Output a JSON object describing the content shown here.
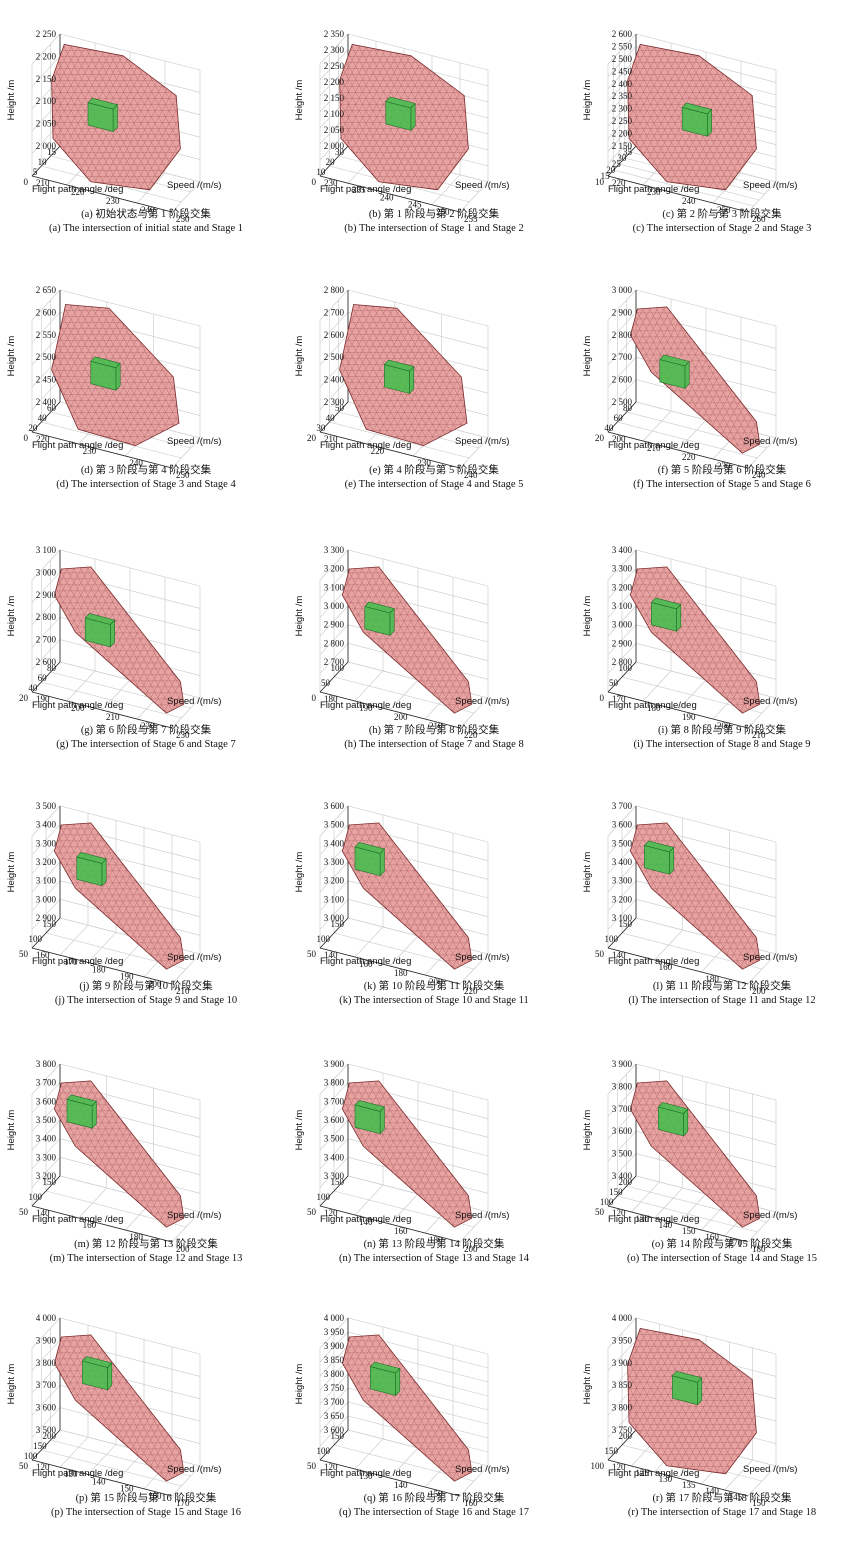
{
  "figure": {
    "panels": [
      {
        "id": "a",
        "caption_cn": "(a) 初始状态与第 1 阶段交集",
        "caption_en": "(a) The intersection of initial state and Stage 1",
        "chart_data": {
          "type": "3d-surface",
          "zlabel": "Height /m",
          "ylabel": "Flight path angle /deg",
          "xlabel": "Speed /(m/s)",
          "z_ticks": [
            "2 000",
            "2 050",
            "2 100",
            "2 150",
            "2 200",
            "2 250"
          ],
          "y_ticks": [
            "0",
            "5",
            "10",
            "15"
          ],
          "x_ticks": [
            "210",
            "220",
            "230",
            "240",
            "250"
          ],
          "shape": "bulky",
          "box": [
            0.35,
            0.25,
            0.5
          ]
        }
      },
      {
        "id": "b",
        "caption_cn": "(b) 第 1 阶段与第 2 阶段交集",
        "caption_en": "(b) The intersection of Stage 1 and Stage 2",
        "chart_data": {
          "type": "3d-surface",
          "zlabel": "Height /m",
          "ylabel": "Flight path angle /deg",
          "xlabel": "Speed /(m/s)",
          "z_ticks": [
            "2 000",
            "2 050",
            "2 100",
            "2 150",
            "2 200",
            "2 250",
            "2 300",
            "2 350"
          ],
          "y_ticks": [
            "0",
            "10",
            "20",
            "30"
          ],
          "x_ticks": [
            "230",
            "235",
            "240",
            "245",
            "250",
            "255"
          ],
          "shape": "bulky",
          "box": [
            0.4,
            0.35,
            0.5
          ]
        }
      },
      {
        "id": "c",
        "caption_cn": "(c) 第 2 阶与第 3 阶段交集",
        "caption_en": "(c) The intersection of Stage 2 and Stage 3",
        "chart_data": {
          "type": "3d-surface",
          "zlabel": "Height /m",
          "ylabel": "Flight path angle /deg",
          "xlabel": "Speed /(m/s)",
          "z_ticks": [
            "2 150",
            "2 200",
            "2 250",
            "2 300",
            "2 350",
            "2 400",
            "2 450",
            "2 500",
            "2 550",
            "2 600"
          ],
          "y_ticks": [
            "10",
            "15",
            "20",
            "25",
            "30",
            "35"
          ],
          "x_ticks": [
            "220",
            "230",
            "240",
            "250",
            "260"
          ],
          "shape": "bulky",
          "box": [
            0.45,
            0.4,
            0.45
          ]
        }
      },
      {
        "id": "d",
        "caption_cn": "(d) 第 3 阶段与第 4 阶段交集",
        "caption_en": "(d) The intersection of Stage 3 and Stage 4",
        "chart_data": {
          "type": "3d-surface",
          "zlabel": "Height /m",
          "ylabel": "Flight path angle /deg",
          "xlabel": "Speed /(m/s)",
          "z_ticks": [
            "2 400",
            "2 450",
            "2 500",
            "2 550",
            "2 600",
            "2 650"
          ],
          "y_ticks": [
            "0",
            "20",
            "40",
            "60"
          ],
          "x_ticks": [
            "220",
            "230",
            "240",
            "250"
          ],
          "shape": "mid",
          "box": [
            0.35,
            0.35,
            0.45
          ]
        }
      },
      {
        "id": "e",
        "caption_cn": "(e) 第 4 阶段与第 5 阶段交集",
        "caption_en": "(e) The intersection of Stage 4 and Stage 5",
        "chart_data": {
          "type": "3d-surface",
          "zlabel": "Height /m",
          "ylabel": "Flight path angle /deg",
          "xlabel": "Speed /(m/s)",
          "z_ticks": [
            "2 300",
            "2 400",
            "2 500",
            "2 600",
            "2 700",
            "2 800"
          ],
          "y_ticks": [
            "20",
            "30",
            "40",
            "50"
          ],
          "x_ticks": [
            "210",
            "220",
            "230",
            "240"
          ],
          "shape": "mid",
          "box": [
            0.4,
            0.3,
            0.45
          ]
        }
      },
      {
        "id": "f",
        "caption_cn": "(f) 第 5 阶段与第 6 阶段交集",
        "caption_en": "(f) The intersection of Stage 5 and Stage 6",
        "chart_data": {
          "type": "3d-surface",
          "zlabel": "Height /m",
          "ylabel": "Flight path angle /deg",
          "xlabel": "Speed /(m/s)",
          "z_ticks": [
            "2 500",
            "2 600",
            "2 700",
            "2 800",
            "2 900",
            "3 000"
          ],
          "y_ticks": [
            "20",
            "40",
            "60",
            "80"
          ],
          "x_ticks": [
            "200",
            "210",
            "220",
            "230",
            "240"
          ],
          "shape": "long",
          "box": [
            0.3,
            0.35,
            0.45
          ]
        }
      },
      {
        "id": "g",
        "caption_cn": "(g) 第 6 阶段与第 7 阶段交集",
        "caption_en": "(g) The intersection of Stage 6 and Stage 7",
        "chart_data": {
          "type": "3d-surface",
          "zlabel": "Height /m",
          "ylabel": "Flight path angle /deg",
          "xlabel": "Speed /(m/s)",
          "z_ticks": [
            "2 600",
            "2 700",
            "2 800",
            "2 900",
            "3 000",
            "3 100"
          ],
          "y_ticks": [
            "20",
            "40",
            "60",
            "80"
          ],
          "x_ticks": [
            "190",
            "200",
            "210",
            "220",
            "230"
          ],
          "shape": "long",
          "box": [
            0.3,
            0.4,
            0.45
          ]
        }
      },
      {
        "id": "h",
        "caption_cn": "(h) 第 7 阶段与第 8 阶段交集",
        "caption_en": "(h) The intersection of Stage 7 and Stage 8",
        "chart_data": {
          "type": "3d-surface",
          "zlabel": "Height /m",
          "ylabel": "Flight path angle /deg",
          "xlabel": "Speed /(m/s)",
          "z_ticks": [
            "2 700",
            "2 800",
            "2 900",
            "3 000",
            "3 100",
            "3 200",
            "3 300"
          ],
          "y_ticks": [
            "0",
            "50",
            "100"
          ],
          "x_ticks": [
            "180",
            "190",
            "200",
            "210",
            "220"
          ],
          "shape": "long",
          "box": [
            0.25,
            0.35,
            0.55
          ]
        }
      },
      {
        "id": "i",
        "caption_cn": "(i) 第 8 阶段与第 9 阶段交集",
        "caption_en": "(i) The intersection of Stage 8 and Stage 9",
        "chart_data": {
          "type": "3d-surface",
          "zlabel": "Height /m",
          "ylabel": "Flight path angle/deg",
          "xlabel": "Speed /(m/s)",
          "z_ticks": [
            "2 800",
            "2 900",
            "3 000",
            "3 100",
            "3 200",
            "3 300",
            "3 400"
          ],
          "y_ticks": [
            "0",
            "50",
            "100"
          ],
          "x_ticks": [
            "170",
            "180",
            "190",
            "200",
            "210"
          ],
          "shape": "long",
          "box": [
            0.25,
            0.3,
            0.6
          ]
        }
      },
      {
        "id": "j",
        "caption_cn": "(j) 第 9 阶段与第 10 阶段交集",
        "caption_en": "(j) The intersection of Stage 9 and Stage 10",
        "chart_data": {
          "type": "3d-surface",
          "zlabel": "Height /m",
          "ylabel": "Flight path angle /deg",
          "xlabel": "Speed /(m/s)",
          "z_ticks": [
            "2 900",
            "3 000",
            "3 100",
            "3 200",
            "3 300",
            "3 400",
            "3 500"
          ],
          "y_ticks": [
            "50",
            "100",
            "150"
          ],
          "x_ticks": [
            "160",
            "170",
            "180",
            "190",
            "200",
            "210"
          ],
          "shape": "long",
          "box": [
            0.25,
            0.35,
            0.6
          ]
        }
      },
      {
        "id": "k",
        "caption_cn": "(k) 第 10 阶段与第 11 阶段交集",
        "caption_en": "(k) The intersection of Stage 10 and Stage 11",
        "chart_data": {
          "type": "3d-surface",
          "zlabel": "Height /m",
          "ylabel": "Flight path angle /deg",
          "xlabel": "Speed /(m/s)",
          "z_ticks": [
            "3 000",
            "3 100",
            "3 200",
            "3 300",
            "3 400",
            "3 500",
            "3 600"
          ],
          "y_ticks": [
            "50",
            "100",
            "150"
          ],
          "x_ticks": [
            "140",
            "160",
            "180",
            "200",
            "220"
          ],
          "shape": "long",
          "box": [
            0.2,
            0.25,
            0.7
          ]
        }
      },
      {
        "id": "l",
        "caption_cn": "(l) 第 11 阶段与第 12 阶段交集",
        "caption_en": "(l) The intersection of Stage 11 and Stage 12",
        "chart_data": {
          "type": "3d-surface",
          "zlabel": "Height /m",
          "ylabel": "Flight path angle /deg",
          "xlabel": "Speed /(m/s)",
          "z_ticks": [
            "3 100",
            "3 200",
            "3 300",
            "3 400",
            "3 500",
            "3 600",
            "3 700"
          ],
          "y_ticks": [
            "50",
            "100",
            "150"
          ],
          "x_ticks": [
            "140",
            "160",
            "180",
            "200"
          ],
          "shape": "long",
          "box": [
            0.2,
            0.3,
            0.7
          ]
        }
      },
      {
        "id": "m",
        "caption_cn": "(m) 第 12 阶段与第 13 阶段交集",
        "caption_en": "(m) The intersection of Stage 12 and Stage 13",
        "chart_data": {
          "type": "3d-surface",
          "zlabel": "Height /m",
          "ylabel": "Flight path angle /deg",
          "xlabel": "Speed /(m/s)",
          "z_ticks": [
            "3 200",
            "3 300",
            "3 400",
            "3 500",
            "3 600",
            "3 700",
            "3 800"
          ],
          "y_ticks": [
            "50",
            "100",
            "150"
          ],
          "x_ticks": [
            "140",
            "160",
            "180",
            "200"
          ],
          "shape": "long",
          "box": [
            0.2,
            0.25,
            0.75
          ]
        }
      },
      {
        "id": "n",
        "caption_cn": "(n) 第 13 阶段与第 14 阶段交集",
        "caption_en": "(n) The intersection of Stage 13 and Stage 14",
        "chart_data": {
          "type": "3d-surface",
          "zlabel": "Height /m",
          "ylabel": "Flight path angle /deg",
          "xlabel": "Speed /(m/s)",
          "z_ticks": [
            "3 300",
            "3 400",
            "3 500",
            "3 600",
            "3 700",
            "3 800",
            "3 900"
          ],
          "y_ticks": [
            "50",
            "100",
            "150"
          ],
          "x_ticks": [
            "120",
            "140",
            "160",
            "180",
            "200"
          ],
          "shape": "long",
          "box": [
            0.2,
            0.25,
            0.7
          ]
        }
      },
      {
        "id": "o",
        "caption_cn": "(o) 第 14 阶段与第 15 阶段交集",
        "caption_en": "(o) The intersection of Stage 14 and Stage 15",
        "chart_data": {
          "type": "3d-surface",
          "zlabel": "Height /m",
          "ylabel": "Flight path angle /deg",
          "xlabel": "Speed /(m/s)",
          "z_ticks": [
            "3 400",
            "3 500",
            "3 600",
            "3 700",
            "3 800",
            "3 900"
          ],
          "y_ticks": [
            "50",
            "100",
            "150",
            "200"
          ],
          "x_ticks": [
            "120",
            "130",
            "140",
            "150",
            "160",
            "170",
            "180"
          ],
          "shape": "long",
          "box": [
            0.3,
            0.3,
            0.7
          ]
        }
      },
      {
        "id": "p",
        "caption_cn": "(p) 第 15 阶段与第 16 阶段交集",
        "caption_en": "(p) The intersection of Stage 15 and Stage 16",
        "chart_data": {
          "type": "3d-surface",
          "zlabel": "Height /m",
          "ylabel": "Flight path angle /deg",
          "xlabel": "Speed /(m/s)",
          "z_ticks": [
            "3 500",
            "3 600",
            "3 700",
            "3 800",
            "3 900",
            "4 000"
          ],
          "y_ticks": [
            "50",
            "100",
            "150",
            "200"
          ],
          "x_ticks": [
            "120",
            "130",
            "140",
            "150",
            "160",
            "170"
          ],
          "shape": "long",
          "box": [
            0.3,
            0.3,
            0.7
          ]
        }
      },
      {
        "id": "q",
        "caption_cn": "(q) 第 16 阶段与第 17 阶段交集",
        "caption_en": "(q) The intersection of Stage 16 and Stage 17",
        "chart_data": {
          "type": "3d-surface",
          "zlabel": "Height /m",
          "ylabel": "Flight path angle /deg",
          "xlabel": "Speed /(m/s)",
          "z_ticks": [
            "3 600",
            "3 650",
            "3 700",
            "3 750",
            "3 800",
            "3 850",
            "3 900",
            "3 950",
            "4 000"
          ],
          "y_ticks": [
            "50",
            "100",
            "150"
          ],
          "x_ticks": [
            "120",
            "130",
            "140",
            "150",
            "160"
          ],
          "shape": "long",
          "box": [
            0.3,
            0.3,
            0.65
          ]
        }
      },
      {
        "id": "r",
        "caption_cn": "(r) 第 17 阶段与第 18 阶段交集",
        "caption_en": "(r) The intersection of Stage 17 and Stage 18",
        "chart_data": {
          "type": "3d-surface",
          "zlabel": "Height /m",
          "ylabel": "Flight path angle /deg",
          "xlabel": "Speed /(m/s)",
          "z_ticks": [
            "3 750",
            "3 800",
            "3 850",
            "3 900",
            "3 950",
            "4 000"
          ],
          "y_ticks": [
            "100",
            "150",
            "200"
          ],
          "x_ticks": [
            "120",
            "125",
            "130",
            "135",
            "140",
            "145",
            "150"
          ],
          "shape": "bulky",
          "box": [
            0.4,
            0.3,
            0.6
          ]
        }
      }
    ],
    "colors": {
      "surface_fill": "#e59a9a",
      "surface_edge": "#7a2a2a",
      "box_fill": "#3fbf4a",
      "box_edge": "#1f6f28",
      "grid": "#c8c8c8",
      "axis": "#222222"
    }
  }
}
